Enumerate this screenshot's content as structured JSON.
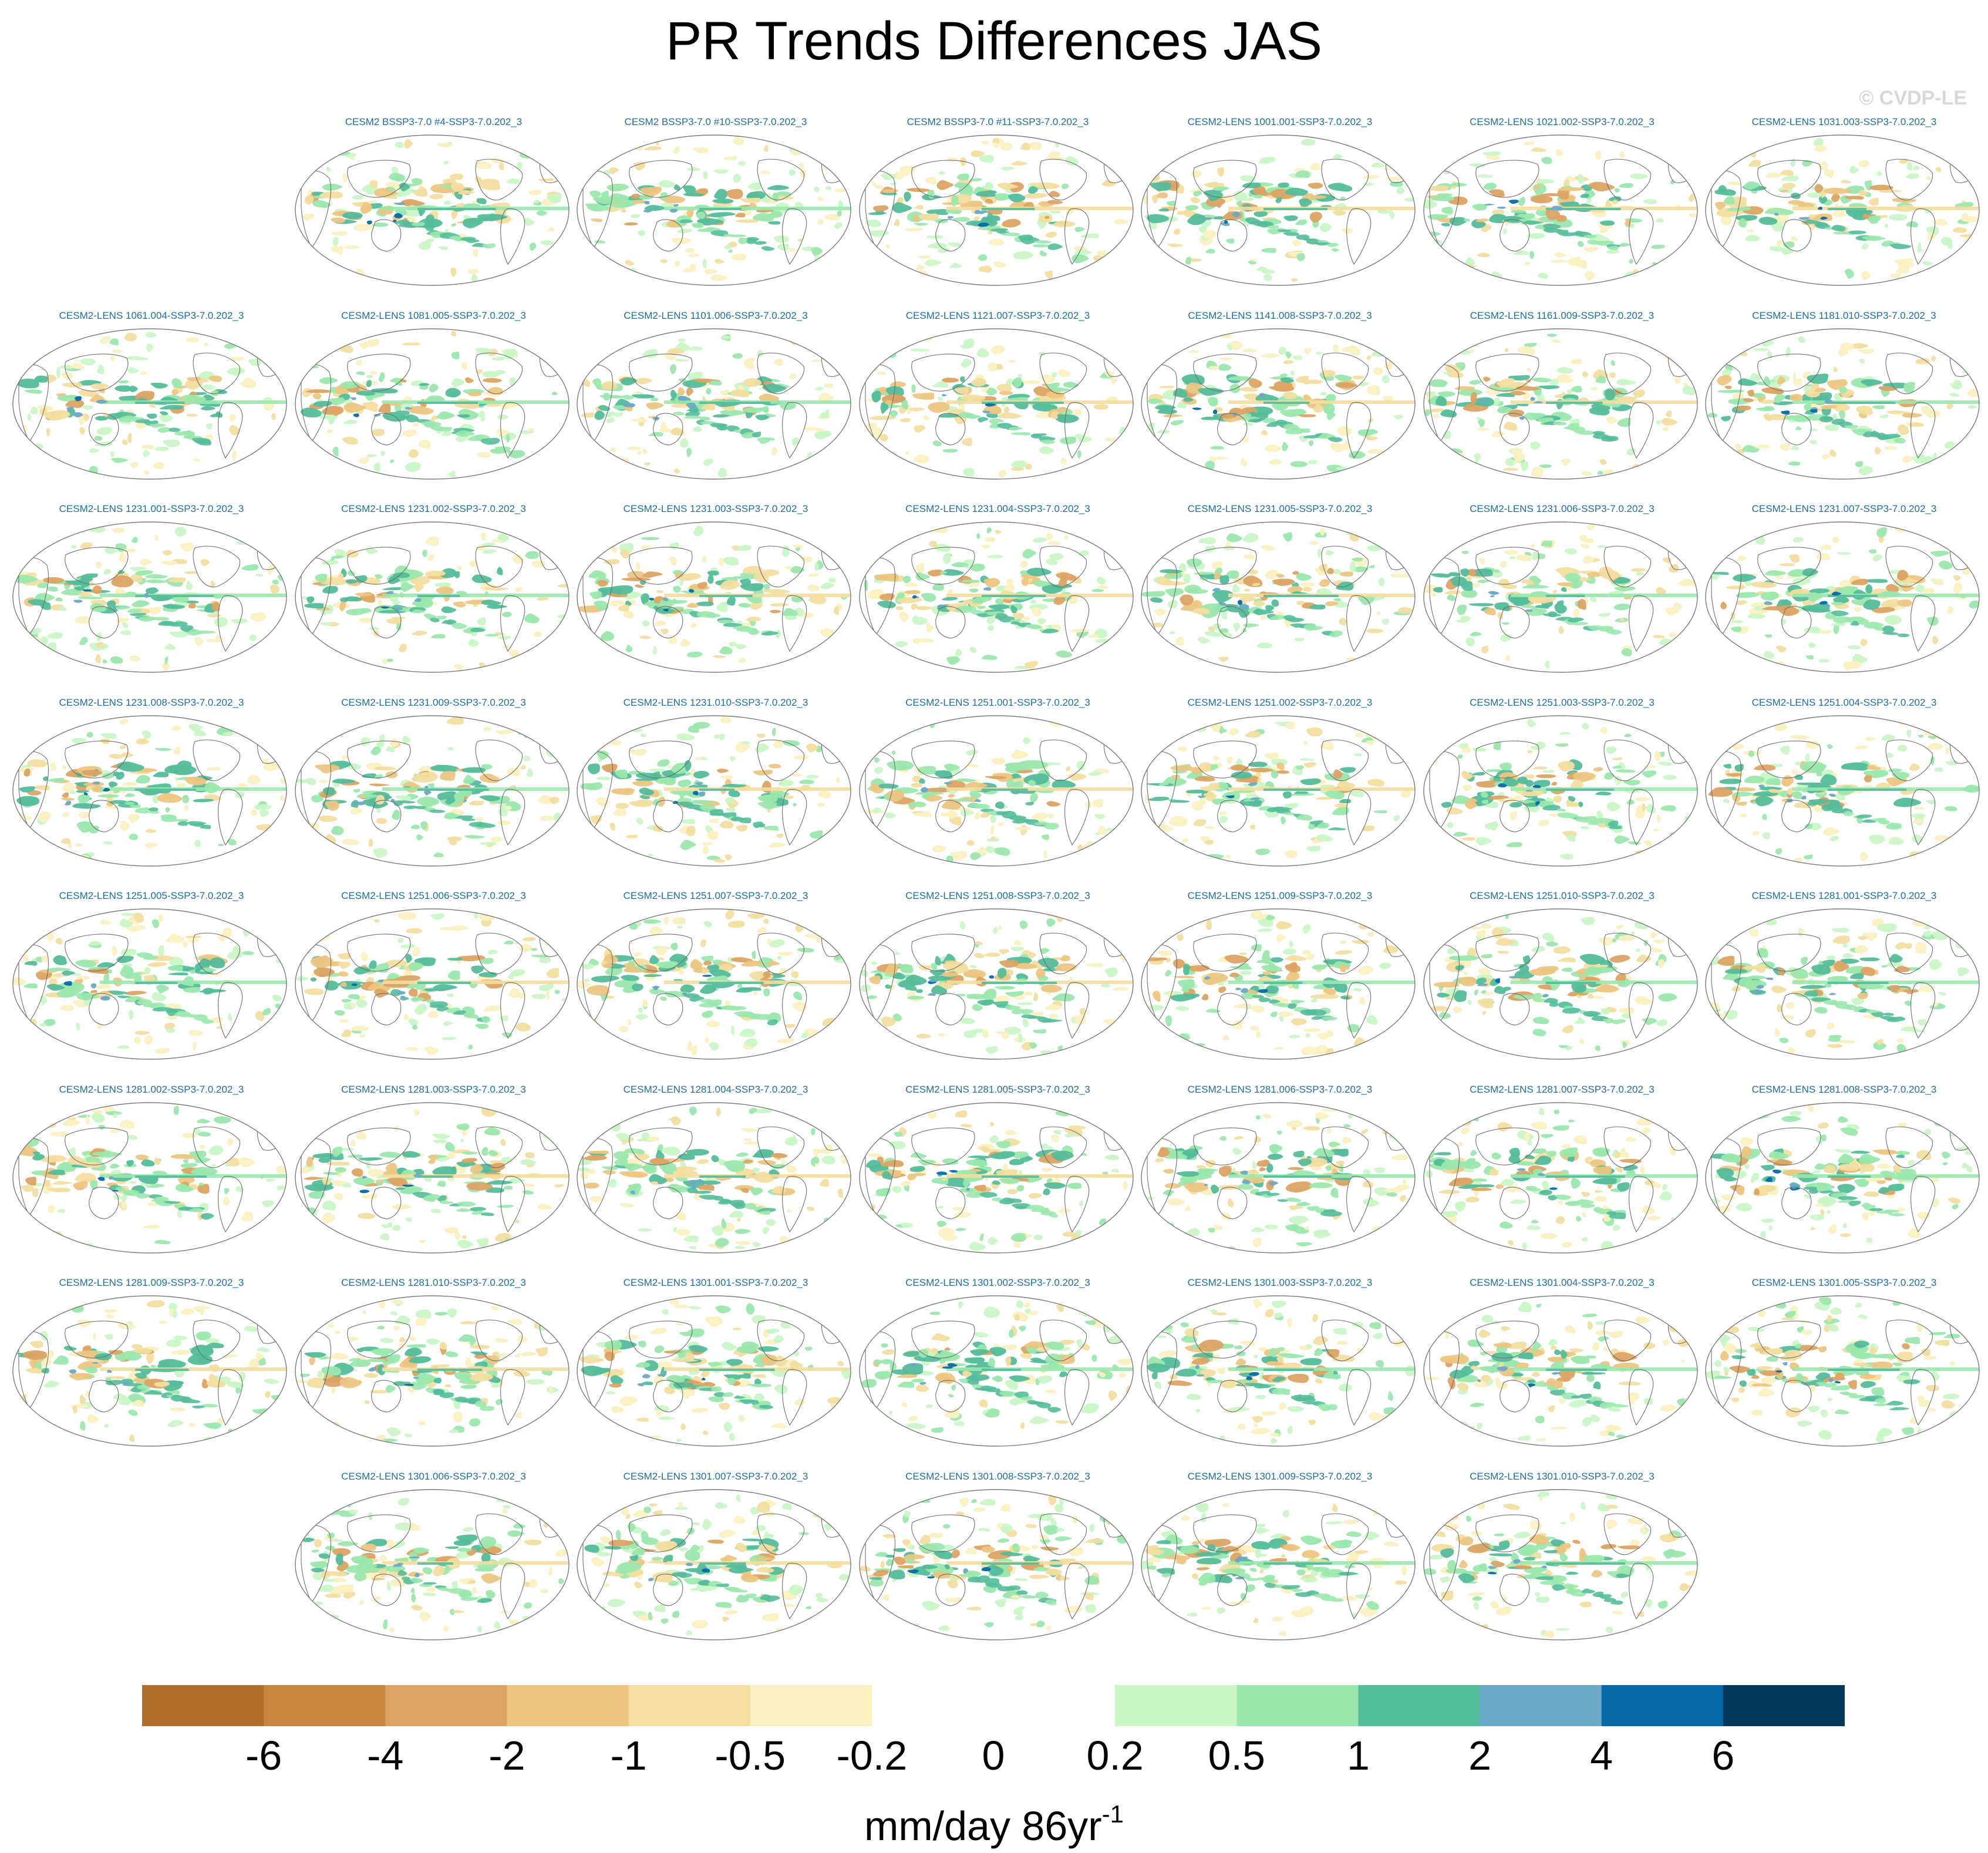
{
  "title": "PR Trends Differences JAS",
  "watermark": "© CVDP-LE",
  "units": {
    "base": "mm/day 86yr",
    "exponent": "-1"
  },
  "colorbar": {
    "ticks": [
      "-6",
      "-4",
      "-2",
      "-1",
      "-0.5",
      "-0.2",
      "0",
      "0.2",
      "0.5",
      "1",
      "2",
      "4",
      "6"
    ],
    "colors": [
      "#b26d2a",
      "#c98540",
      "#dca363",
      "#edc57f",
      "#f3dd9f",
      "#fbf0c0",
      "#ffffff",
      "#ffffff",
      "#c9f7c6",
      "#9ae8ad",
      "#53bc9b",
      "#6ca8c8",
      "#046aa6",
      "#02385a"
    ]
  },
  "panels": [
    {
      "row": 0,
      "col": 1,
      "label": "CESM2 BSSP3-7.0 #4-SSP3-7.0.202_3"
    },
    {
      "row": 0,
      "col": 2,
      "label": "CESM2 BSSP3-7.0 #10-SSP3-7.0.202_3"
    },
    {
      "row": 0,
      "col": 3,
      "label": "CESM2 BSSP3-7.0 #11-SSP3-7.0.202_3"
    },
    {
      "row": 0,
      "col": 4,
      "label": "CESM2-LENS 1001.001-SSP3-7.0.202_3"
    },
    {
      "row": 0,
      "col": 5,
      "label": "CESM2-LENS 1021.002-SSP3-7.0.202_3"
    },
    {
      "row": 0,
      "col": 6,
      "label": "CESM2-LENS 1031.003-SSP3-7.0.202_3"
    },
    {
      "row": 1,
      "col": 0,
      "label": "CESM2-LENS 1061.004-SSP3-7.0.202_3"
    },
    {
      "row": 1,
      "col": 1,
      "label": "CESM2-LENS 1081.005-SSP3-7.0.202_3"
    },
    {
      "row": 1,
      "col": 2,
      "label": "CESM2-LENS 1101.006-SSP3-7.0.202_3"
    },
    {
      "row": 1,
      "col": 3,
      "label": "CESM2-LENS 1121.007-SSP3-7.0.202_3"
    },
    {
      "row": 1,
      "col": 4,
      "label": "CESM2-LENS 1141.008-SSP3-7.0.202_3"
    },
    {
      "row": 1,
      "col": 5,
      "label": "CESM2-LENS 1161.009-SSP3-7.0.202_3"
    },
    {
      "row": 1,
      "col": 6,
      "label": "CESM2-LENS 1181.010-SSP3-7.0.202_3"
    },
    {
      "row": 2,
      "col": 0,
      "label": "CESM2-LENS 1231.001-SSP3-7.0.202_3"
    },
    {
      "row": 2,
      "col": 1,
      "label": "CESM2-LENS 1231.002-SSP3-7.0.202_3"
    },
    {
      "row": 2,
      "col": 2,
      "label": "CESM2-LENS 1231.003-SSP3-7.0.202_3"
    },
    {
      "row": 2,
      "col": 3,
      "label": "CESM2-LENS 1231.004-SSP3-7.0.202_3"
    },
    {
      "row": 2,
      "col": 4,
      "label": "CESM2-LENS 1231.005-SSP3-7.0.202_3"
    },
    {
      "row": 2,
      "col": 5,
      "label": "CESM2-LENS 1231.006-SSP3-7.0.202_3"
    },
    {
      "row": 2,
      "col": 6,
      "label": "CESM2-LENS 1231.007-SSP3-7.0.202_3"
    },
    {
      "row": 3,
      "col": 0,
      "label": "CESM2-LENS 1231.008-SSP3-7.0.202_3"
    },
    {
      "row": 3,
      "col": 1,
      "label": "CESM2-LENS 1231.009-SSP3-7.0.202_3"
    },
    {
      "row": 3,
      "col": 2,
      "label": "CESM2-LENS 1231.010-SSP3-7.0.202_3"
    },
    {
      "row": 3,
      "col": 3,
      "label": "CESM2-LENS 1251.001-SSP3-7.0.202_3"
    },
    {
      "row": 3,
      "col": 4,
      "label": "CESM2-LENS 1251.002-SSP3-7.0.202_3"
    },
    {
      "row": 3,
      "col": 5,
      "label": "CESM2-LENS 1251.003-SSP3-7.0.202_3"
    },
    {
      "row": 3,
      "col": 6,
      "label": "CESM2-LENS 1251.004-SSP3-7.0.202_3"
    },
    {
      "row": 4,
      "col": 0,
      "label": "CESM2-LENS 1251.005-SSP3-7.0.202_3"
    },
    {
      "row": 4,
      "col": 1,
      "label": "CESM2-LENS 1251.006-SSP3-7.0.202_3"
    },
    {
      "row": 4,
      "col": 2,
      "label": "CESM2-LENS 1251.007-SSP3-7.0.202_3"
    },
    {
      "row": 4,
      "col": 3,
      "label": "CESM2-LENS 1251.008-SSP3-7.0.202_3"
    },
    {
      "row": 4,
      "col": 4,
      "label": "CESM2-LENS 1251.009-SSP3-7.0.202_3"
    },
    {
      "row": 4,
      "col": 5,
      "label": "CESM2-LENS 1251.010-SSP3-7.0.202_3"
    },
    {
      "row": 4,
      "col": 6,
      "label": "CESM2-LENS 1281.001-SSP3-7.0.202_3"
    },
    {
      "row": 5,
      "col": 0,
      "label": "CESM2-LENS 1281.002-SSP3-7.0.202_3"
    },
    {
      "row": 5,
      "col": 1,
      "label": "CESM2-LENS 1281.003-SSP3-7.0.202_3"
    },
    {
      "row": 5,
      "col": 2,
      "label": "CESM2-LENS 1281.004-SSP3-7.0.202_3"
    },
    {
      "row": 5,
      "col": 3,
      "label": "CESM2-LENS 1281.005-SSP3-7.0.202_3"
    },
    {
      "row": 5,
      "col": 4,
      "label": "CESM2-LENS 1281.006-SSP3-7.0.202_3"
    },
    {
      "row": 5,
      "col": 5,
      "label": "CESM2-LENS 1281.007-SSP3-7.0.202_3"
    },
    {
      "row": 5,
      "col": 6,
      "label": "CESM2-LENS 1281.008-SSP3-7.0.202_3"
    },
    {
      "row": 6,
      "col": 0,
      "label": "CESM2-LENS 1281.009-SSP3-7.0.202_3"
    },
    {
      "row": 6,
      "col": 1,
      "label": "CESM2-LENS 1281.010-SSP3-7.0.202_3"
    },
    {
      "row": 6,
      "col": 2,
      "label": "CESM2-LENS 1301.001-SSP3-7.0.202_3"
    },
    {
      "row": 6,
      "col": 3,
      "label": "CESM2-LENS 1301.002-SSP3-7.0.202_3"
    },
    {
      "row": 6,
      "col": 4,
      "label": "CESM2-LENS 1301.003-SSP3-7.0.202_3"
    },
    {
      "row": 6,
      "col": 5,
      "label": "CESM2-LENS 1301.004-SSP3-7.0.202_3"
    },
    {
      "row": 6,
      "col": 6,
      "label": "CESM2-LENS 1301.005-SSP3-7.0.202_3"
    },
    {
      "row": 7,
      "col": 1,
      "label": "CESM2-LENS 1301.006-SSP3-7.0.202_3"
    },
    {
      "row": 7,
      "col": 2,
      "label": "CESM2-LENS 1301.007-SSP3-7.0.202_3"
    },
    {
      "row": 7,
      "col": 3,
      "label": "CESM2-LENS 1301.008-SSP3-7.0.202_3"
    },
    {
      "row": 7,
      "col": 4,
      "label": "CESM2-LENS 1301.009-SSP3-7.0.202_3"
    },
    {
      "row": 7,
      "col": 5,
      "label": "CESM2-LENS 1301.010-SSP3-7.0.202_3"
    }
  ]
}
